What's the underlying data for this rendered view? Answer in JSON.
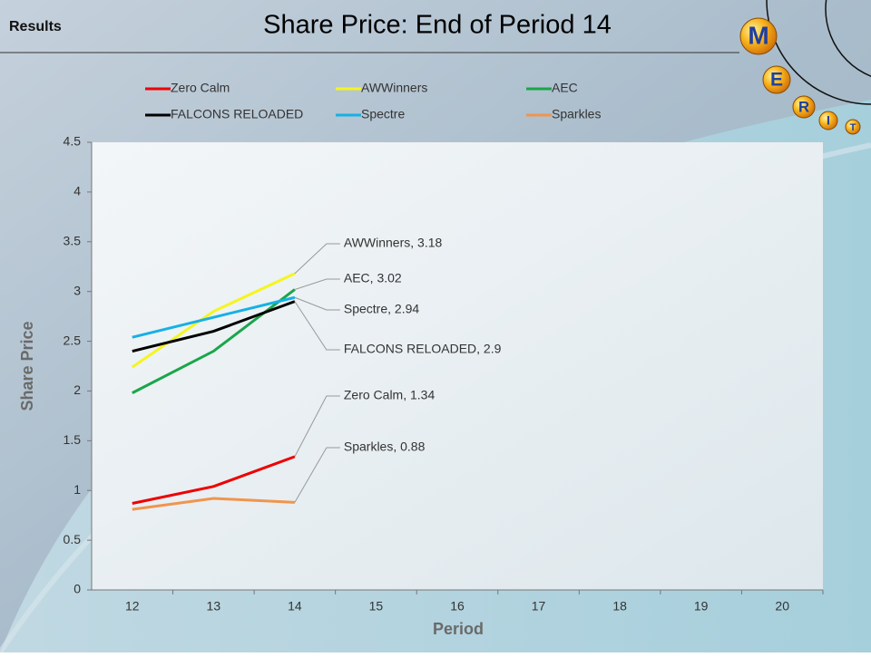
{
  "header": "Results",
  "logo": [
    "M",
    "E",
    "R",
    "I",
    "T"
  ],
  "chart_data": {
    "type": "line",
    "title": "Share Price: End of Period 14",
    "x_label": "Period",
    "y_label": "Share Price",
    "categories": [
      12,
      13,
      14,
      15,
      16,
      17,
      18,
      19,
      20
    ],
    "ylim": [
      0,
      4.5
    ],
    "yticks": [
      0,
      0.5,
      1,
      1.5,
      2,
      2.5,
      3,
      3.5,
      4,
      4.5
    ],
    "series": [
      {
        "name": "Zero Calm",
        "color": "#ee0000",
        "values": [
          0.87,
          1.04,
          1.34,
          null,
          null,
          null,
          null,
          null,
          null
        ],
        "value_labels": [
          null,
          null,
          "Zero Calm, 1.34",
          null,
          null,
          null,
          null,
          null,
          null
        ]
      },
      {
        "name": "AWWinners",
        "color": "#f5f520",
        "values": [
          2.24,
          2.8,
          3.18,
          null,
          null,
          null,
          null,
          null,
          null
        ],
        "value_labels": [
          null,
          null,
          "AWWinners, 3.18",
          null,
          null,
          null,
          null,
          null,
          null
        ]
      },
      {
        "name": "AEC",
        "color": "#1aa64a",
        "values": [
          1.98,
          2.4,
          3.02,
          null,
          null,
          null,
          null,
          null,
          null
        ],
        "value_labels": [
          null,
          null,
          "AEC, 3.02",
          null,
          null,
          null,
          null,
          null,
          null
        ]
      },
      {
        "name": "FALCONS RELOADED",
        "color": "#000000",
        "values": [
          2.4,
          2.6,
          2.9,
          null,
          null,
          null,
          null,
          null,
          null
        ],
        "value_labels": [
          null,
          null,
          "FALCONS RELOADED, 2.9",
          null,
          null,
          null,
          null,
          null,
          null
        ]
      },
      {
        "name": "Spectre",
        "color": "#17b0e6",
        "values": [
          2.54,
          2.74,
          2.94,
          null,
          null,
          null,
          null,
          null,
          null
        ],
        "value_labels": [
          null,
          null,
          "Spectre, 2.94",
          null,
          null,
          null,
          null,
          null,
          null
        ]
      },
      {
        "name": "Sparkles",
        "color": "#f0954c",
        "values": [
          0.81,
          0.92,
          0.88,
          null,
          null,
          null,
          null,
          null,
          null
        ],
        "value_labels": [
          null,
          null,
          "Sparkles, 0.88",
          null,
          null,
          null,
          null,
          null,
          null
        ]
      }
    ]
  }
}
